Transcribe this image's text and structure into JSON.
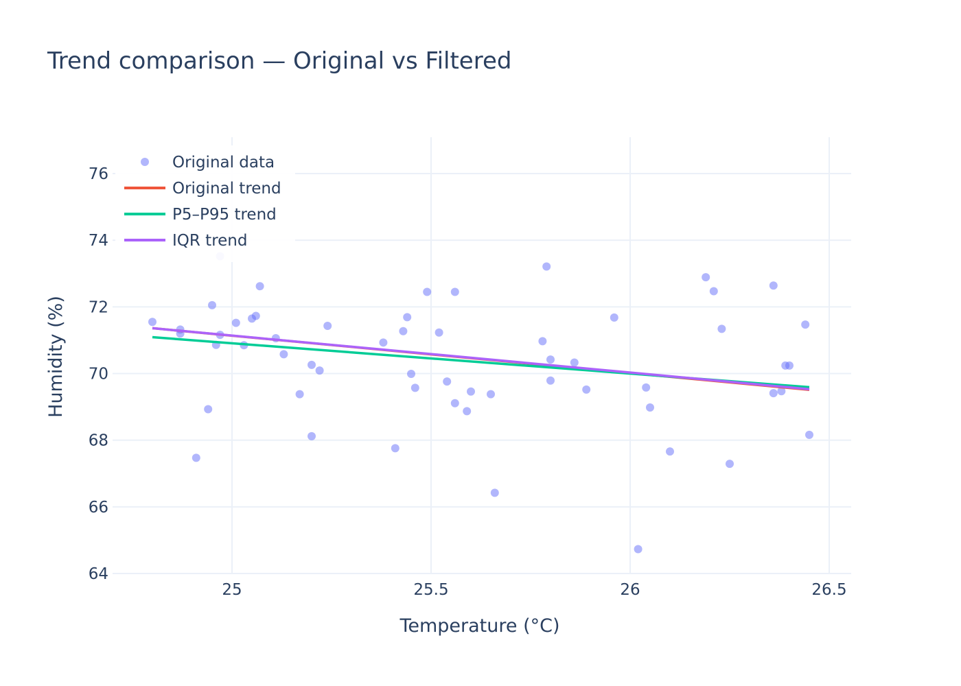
{
  "chart_data": {
    "type": "scatter",
    "title": "Trend comparison — Original vs Filtered",
    "xlabel": "Temperature (°C)",
    "ylabel": "Humidity (%)",
    "xlim": [
      24.72,
      26.56
    ],
    "ylim": [
      63.8,
      77.1
    ],
    "x_ticks": [
      25,
      25.5,
      26,
      26.5
    ],
    "x_tick_labels": [
      "25",
      "25.5",
      "26",
      "26.5"
    ],
    "y_ticks": [
      64,
      66,
      68,
      70,
      72,
      74,
      76
    ],
    "y_tick_labels": [
      "64",
      "66",
      "68",
      "70",
      "72",
      "74",
      "76"
    ],
    "grid": true,
    "legend_position": "top-left",
    "legend": [
      "Original data",
      "Original trend",
      "P5–P95 trend",
      "IQR trend"
    ],
    "colors": {
      "points": "#636efa",
      "original_trend": "#ef553b",
      "p5_p95_trend": "#00cc96",
      "iqr_trend": "#ab63fa"
    },
    "series": [
      {
        "name": "Original data",
        "kind": "points",
        "points": [
          [
            24.8,
            71.55
          ],
          [
            24.87,
            71.32
          ],
          [
            24.87,
            71.2
          ],
          [
            24.91,
            67.47
          ],
          [
            24.94,
            68.93
          ],
          [
            24.95,
            72.05
          ],
          [
            24.96,
            70.86
          ],
          [
            24.97,
            71.16
          ],
          [
            24.97,
            73.52
          ],
          [
            25.01,
            71.52
          ],
          [
            25.03,
            70.85
          ],
          [
            25.05,
            71.65
          ],
          [
            25.06,
            71.73
          ],
          [
            25.07,
            72.62
          ],
          [
            25.11,
            71.06
          ],
          [
            25.13,
            70.58
          ],
          [
            25.17,
            69.38
          ],
          [
            25.2,
            70.26
          ],
          [
            25.2,
            68.12
          ],
          [
            25.22,
            70.09
          ],
          [
            25.24,
            71.43
          ],
          [
            25.38,
            70.93
          ],
          [
            25.41,
            67.76
          ],
          [
            25.43,
            71.27
          ],
          [
            25.44,
            71.69
          ],
          [
            25.45,
            69.99
          ],
          [
            25.46,
            69.57
          ],
          [
            25.49,
            72.45
          ],
          [
            25.52,
            71.23
          ],
          [
            25.54,
            69.76
          ],
          [
            25.56,
            72.45
          ],
          [
            25.56,
            69.11
          ],
          [
            25.59,
            68.87
          ],
          [
            25.6,
            69.46
          ],
          [
            25.65,
            69.38
          ],
          [
            25.66,
            66.42
          ],
          [
            25.78,
            70.97
          ],
          [
            25.79,
            73.21
          ],
          [
            25.8,
            70.42
          ],
          [
            25.8,
            69.79
          ],
          [
            25.86,
            70.33
          ],
          [
            25.89,
            69.52
          ],
          [
            25.96,
            71.68
          ],
          [
            26.02,
            64.73
          ],
          [
            26.04,
            69.58
          ],
          [
            26.05,
            68.98
          ],
          [
            26.1,
            67.66
          ],
          [
            26.19,
            72.89
          ],
          [
            26.21,
            72.47
          ],
          [
            26.23,
            71.34
          ],
          [
            26.25,
            67.29
          ],
          [
            26.36,
            72.64
          ],
          [
            26.36,
            69.41
          ],
          [
            26.38,
            69.47
          ],
          [
            26.39,
            70.24
          ],
          [
            26.4,
            70.24
          ],
          [
            26.44,
            71.47
          ],
          [
            26.45,
            68.16
          ]
        ]
      },
      {
        "name": "Original trend",
        "kind": "line",
        "points": [
          [
            24.8,
            71.36
          ],
          [
            26.45,
            69.51
          ]
        ]
      },
      {
        "name": "P5–P95 trend",
        "kind": "line",
        "points": [
          [
            24.8,
            71.09
          ],
          [
            26.45,
            69.59
          ]
        ]
      },
      {
        "name": "IQR trend",
        "kind": "line",
        "points": [
          [
            24.8,
            71.36
          ],
          [
            26.45,
            69.53
          ]
        ]
      }
    ]
  }
}
